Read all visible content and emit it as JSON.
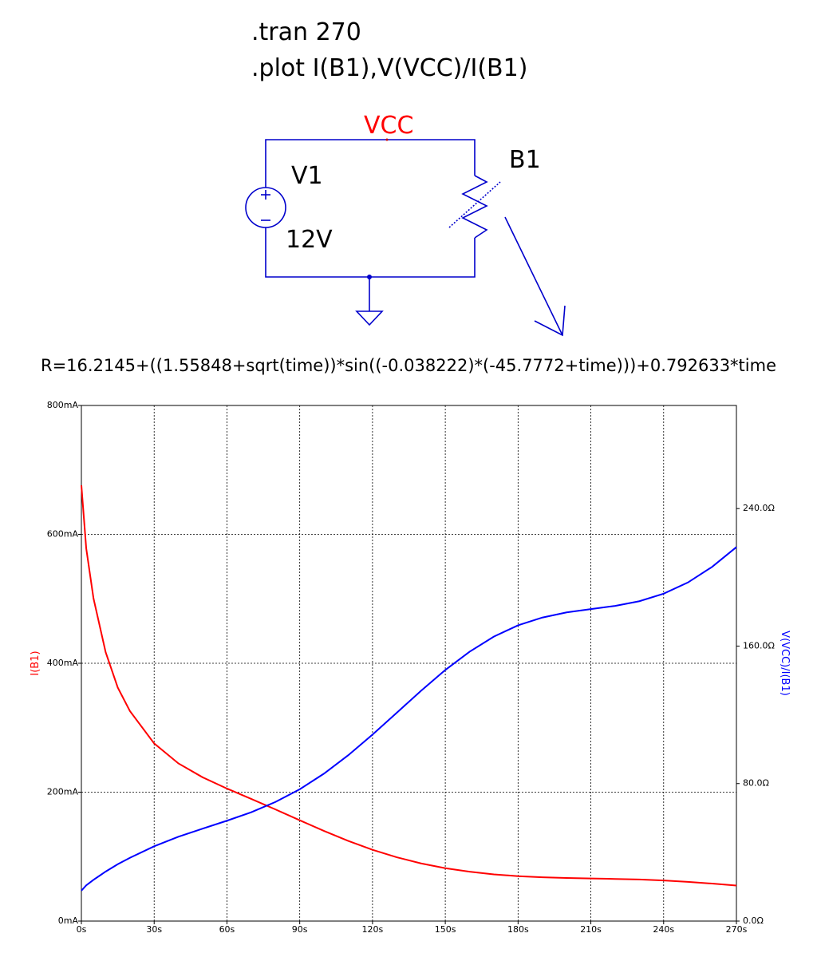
{
  "schematic": {
    "directives": [
      ".tran 270",
      ".plot I(B1),V(VCC)/I(B1)"
    ],
    "net_label": "VCC",
    "source_name": "V1",
    "source_value": "12V",
    "component_name": "B1",
    "formula": "R=16.2145+((1.55848+sqrt(time))*sin((-0.038222)*(-45.7772+time)))+0.792633*time"
  },
  "chart_data": {
    "type": "line",
    "x": [
      0,
      2,
      5,
      10,
      15,
      20,
      30,
      40,
      50,
      60,
      70,
      80,
      90,
      100,
      110,
      120,
      130,
      140,
      150,
      160,
      170,
      180,
      190,
      200,
      210,
      220,
      230,
      240,
      250,
      260,
      270
    ],
    "xlim": [
      0,
      270
    ],
    "xticks": [
      {
        "value": 0,
        "label": "0s"
      },
      {
        "value": 30,
        "label": "30s"
      },
      {
        "value": 60,
        "label": "60s"
      },
      {
        "value": 90,
        "label": "90s"
      },
      {
        "value": 120,
        "label": "120s"
      },
      {
        "value": 150,
        "label": "150s"
      },
      {
        "value": 180,
        "label": "180s"
      },
      {
        "value": 210,
        "label": "210s"
      },
      {
        "value": 240,
        "label": "240s"
      },
      {
        "value": 270,
        "label": "270s"
      }
    ],
    "ylim": [
      0,
      800
    ],
    "yticks": [
      {
        "value": 0,
        "label": "0mA"
      },
      {
        "value": 200,
        "label": "200mA"
      },
      {
        "value": 400,
        "label": "400mA"
      },
      {
        "value": 600,
        "label": "600mA"
      },
      {
        "value": 800,
        "label": "800mA"
      }
    ],
    "y2lim": [
      0,
      300
    ],
    "y2ticks": [
      {
        "value": 0,
        "label": "0.0Ω"
      },
      {
        "value": 80,
        "label": "80.0Ω"
      },
      {
        "value": 160,
        "label": "160.0Ω"
      },
      {
        "value": 240,
        "label": "240.0Ω"
      }
    ],
    "ylabel": "I(B1)",
    "y2label": "V(VCC)/I(B1)",
    "grid": true,
    "series": [
      {
        "name": "I(B1)",
        "color": "#ff0000",
        "values": [
          676.1,
          578.1,
          500.6,
          417.2,
          362.3,
          325.9,
          275.6,
          244.6,
          223.0,
          205.6,
          189.5,
          173.2,
          156.4,
          139.9,
          124.4,
          110.6,
          99.0,
          89.5,
          82.1,
          76.6,
          72.5,
          69.7,
          67.9,
          66.8,
          66.1,
          65.4,
          64.5,
          63.0,
          60.9,
          58.2,
          55.1
        ]
      },
      {
        "name": "V(VCC)/I(B1)",
        "color": "#0000ff",
        "axis": "y2",
        "values": [
          17.7,
          20.8,
          24.0,
          28.8,
          33.1,
          36.8,
          43.5,
          49.1,
          53.8,
          58.4,
          63.3,
          69.3,
          76.7,
          85.8,
          96.5,
          108.5,
          121.2,
          134.0,
          146.1,
          156.7,
          165.5,
          172.1,
          176.6,
          179.6,
          181.5,
          183.4,
          186.1,
          190.5,
          197.0,
          206.1,
          217.6
        ]
      }
    ]
  }
}
